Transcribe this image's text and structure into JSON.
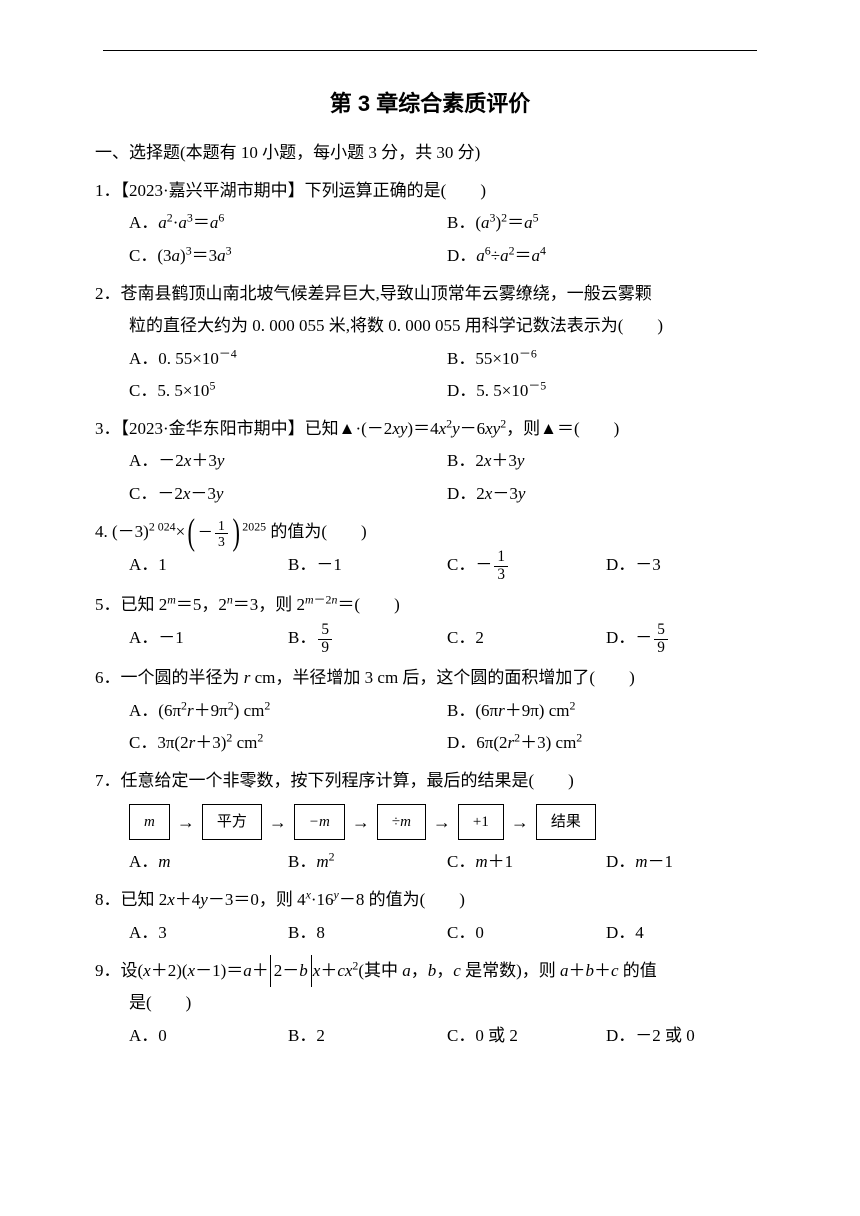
{
  "title": "第 3 章综合素质评价",
  "section1_header": "一、选择题(本题有 10 小题，每小题 3 分，共 30 分)",
  "q1": {
    "stem_prefix": "1．【2023·嘉兴平湖市期中】下列运算正确的是(　　)",
    "optA_pre": "A．",
    "optB_pre": "B．",
    "optC_pre": "C．",
    "optD_pre": "D．"
  },
  "q2": {
    "stem": "2．苍南县鹤顶山南北坡气候差异巨大,导致山顶常年云雾缭绕，一般云雾颗",
    "stem2": "粒的直径大约为 0. 000 055 米,将数 0. 000 055 用科学记数法表示为(　　)",
    "optA": "A．0. 55×10",
    "optA_sup": "－4",
    "optB": "B．55×10",
    "optB_sup": "－6",
    "optC": "C．5. 5×10",
    "optC_sup": "5",
    "optD": "D．5. 5×10",
    "optD_sup": "－5"
  },
  "q3": {
    "stem_pre": "3．【2023·金华东阳市期中】已知▲·(－2",
    "stem_mid": ")＝4",
    "stem_mid2": "－6",
    "stem_post": "，则▲＝(　　)",
    "optA": "A．－2",
    "optA_mid": "＋3",
    "optB": "B．2",
    "optB_mid": "＋3",
    "optC": "C．－2",
    "optC_mid": "－3",
    "optD": "D．2",
    "optD_mid": "－3"
  },
  "q4": {
    "stem_pre": "4. (－3)",
    "stem_sup1": "2 024",
    "stem_mid": "×",
    "stem_sup2": "2025",
    "stem_post": " 的值为(　　)",
    "frac_num": "1",
    "frac_den": "3",
    "frac_neg": "－",
    "optA": "A．1",
    "optB": "B．－1",
    "optC_pre": "C．－",
    "optC_num": "1",
    "optC_den": "3",
    "optD": "D．－3"
  },
  "q5": {
    "stem_pre": "5．已知 2",
    "stem_mid1": "＝5，2",
    "stem_mid2": "＝3，则 2",
    "stem_post": "＝(　　)",
    "optA": "A．－1",
    "optB_pre": "B．",
    "optB_num": "5",
    "optB_den": "9",
    "optC": "C．2",
    "optD_pre": "D．－",
    "optD_num": "5",
    "optD_den": "9"
  },
  "q6": {
    "stem_pre": "6．一个圆的半径为 ",
    "stem_mid": " cm，半径增加 3 cm 后，这个圆的面积增加了(　　)",
    "optA_pre": "A．(6π",
    "optA_mid": "＋9π",
    "optA_post": ") cm",
    "optB_pre": "B．(6π",
    "optB_mid": "＋9π) cm",
    "optC_pre": "C．3π(2",
    "optC_mid": "＋3)",
    "optC_post": " cm",
    "optD_pre": "D．6π(2",
    "optD_mid": "＋3) cm"
  },
  "q7": {
    "stem": "7．任意给定一个非零数，按下列程序计算，最后的结果是(　　)",
    "box1": "m",
    "box2": "平方",
    "box3": "−m",
    "box4": "÷m",
    "box5": "+1",
    "box6": "结果",
    "optA": "A．",
    "optB": "B．",
    "optC": "C．",
    "optC_post": "＋1",
    "optD": "D．",
    "optD_post": "－1"
  },
  "q8": {
    "stem_pre": "8．已知 2",
    "stem_mid1": "＋4",
    "stem_mid2": "－3＝0，则 4",
    "stem_mid3": "·16",
    "stem_post": "－8 的值为(　　)",
    "optA": "A．3",
    "optB": "B．8",
    "optC": "C．0",
    "optD": "D．4"
  },
  "q9": {
    "stem_pre": "9．设(",
    "stem_mid1": "＋2)(",
    "stem_mid2": "－1)＝",
    "stem_mid3": "＋",
    "stem_abs": "2－",
    "stem_mid4": "＋",
    "stem_mid5": "(其中 ",
    "stem_mid6": "，",
    "stem_mid7": "，",
    "stem_mid8": " 是常数)，则 ",
    "stem_mid9": "＋",
    "stem_mid10": "＋",
    "stem_post": " 的值",
    "stem2": "是(　　)",
    "optA": "A．0",
    "optB": "B．2",
    "optC": "C．0 或 2",
    "optD": "D．－2 或 0"
  }
}
